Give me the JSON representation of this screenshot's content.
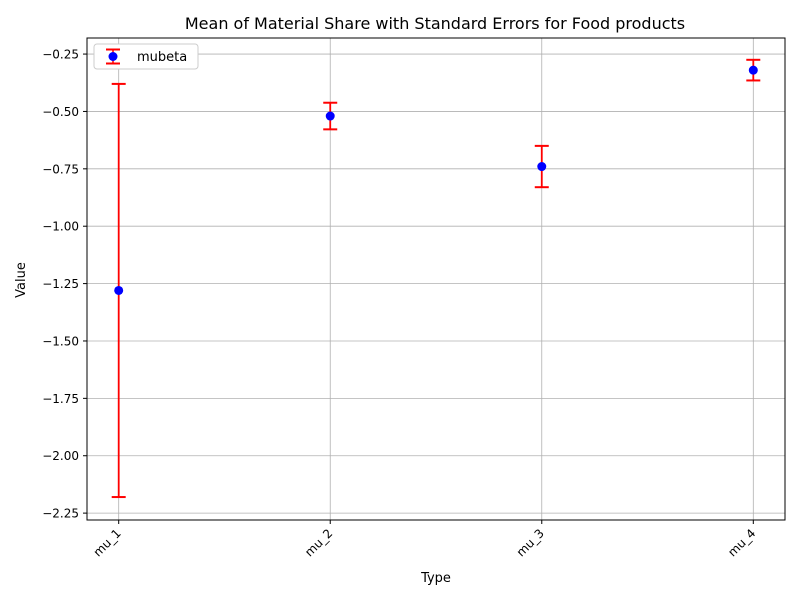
{
  "chart_data": {
    "type": "scatter",
    "title": "Mean of Material Share with Standard Errors for Food products",
    "xlabel": "Type",
    "ylabel": "Value",
    "categories": [
      "mu_1",
      "mu_2",
      "mu_3",
      "mu_4"
    ],
    "series": [
      {
        "name": "mubeta",
        "values": [
          -1.28,
          -0.52,
          -0.74,
          -0.32
        ],
        "errors": [
          0.9,
          0.058,
          0.09,
          0.045
        ]
      }
    ],
    "ylim": [
      -2.28,
      -0.18
    ],
    "yticks": [
      -2.25,
      -2.0,
      -1.75,
      -1.5,
      -1.25,
      -1.0,
      -0.75,
      -0.5,
      -0.25
    ],
    "ytick_labels": [
      "−2.25",
      "−2.00",
      "−1.75",
      "−1.50",
      "−1.25",
      "−1.00",
      "−0.75",
      "−0.50",
      "−0.25"
    ],
    "grid": true,
    "legend": {
      "position": "top-left",
      "label": "mubeta"
    },
    "colors": {
      "marker": "#0000ff",
      "errorbar": "#ff0000",
      "grid": "#b0b0b0",
      "axis": "#000000"
    }
  }
}
